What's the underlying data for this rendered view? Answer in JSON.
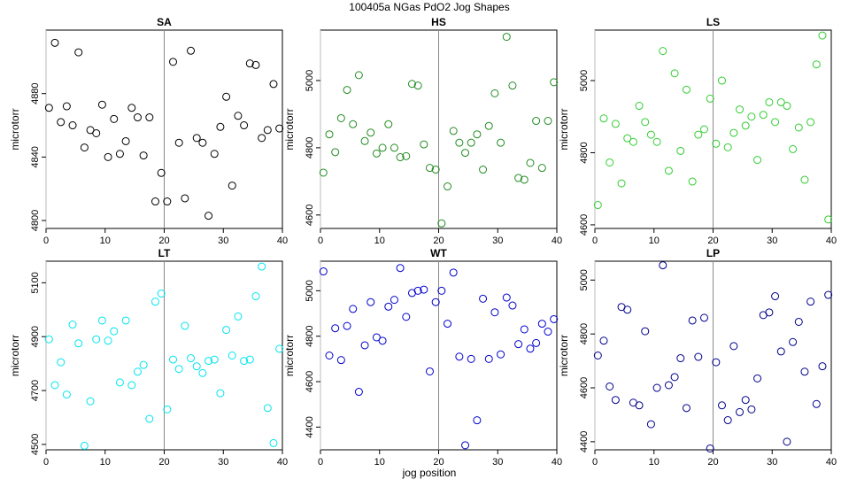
{
  "title": "100405a   NGas PdO2 Jog Shapes",
  "xlabel": "jog position",
  "chart_data": [
    {
      "type": "scatter",
      "title": "SA",
      "ylabel": "microtorr",
      "color": "#000000",
      "xlim": [
        0,
        40
      ],
      "ylim": [
        4795,
        4920
      ],
      "xticks": [
        0,
        10,
        20,
        30,
        40
      ],
      "yticks": [
        4800,
        4840,
        4880
      ],
      "vline": 20,
      "x": [
        0.5,
        1.5,
        2.5,
        3.5,
        4.5,
        5.5,
        6.5,
        7.5,
        8.5,
        9.5,
        10.5,
        11.5,
        12.5,
        13.5,
        14.5,
        15.5,
        16.5,
        17.5,
        18.5,
        19.5,
        20.5,
        21.5,
        22.5,
        23.5,
        24.5,
        25.5,
        26.5,
        27.5,
        28.5,
        29.5,
        30.5,
        31.5,
        32.5,
        33.5,
        34.5,
        35.5,
        36.5,
        37.5,
        38.5,
        39.5
      ],
      "y": [
        4871,
        4912,
        4862,
        4872,
        4860,
        4906,
        4846,
        4857,
        4855,
        4873,
        4840,
        4864,
        4842,
        4850,
        4871,
        4865,
        4841,
        4865,
        4812,
        4830,
        4812,
        4900,
        4849,
        4814,
        4907,
        4852,
        4849,
        4803,
        4842,
        4859,
        4878,
        4822,
        4866,
        4860,
        4899,
        4898,
        4852,
        4857,
        4886,
        4858
      ]
    },
    {
      "type": "scatter",
      "title": "HS",
      "ylabel": "microtorr",
      "color": "#228b22",
      "xlim": [
        0,
        40
      ],
      "ylim": [
        4560,
        5150
      ],
      "xticks": [
        0,
        10,
        20,
        30,
        40
      ],
      "yticks": [
        4600,
        4800,
        5000
      ],
      "vline": 20,
      "x": [
        0.5,
        1.5,
        2.5,
        3.5,
        4.5,
        5.5,
        6.5,
        7.5,
        8.5,
        9.5,
        10.5,
        11.5,
        12.5,
        13.5,
        14.5,
        15.5,
        16.5,
        17.5,
        18.5,
        19.5,
        20.5,
        21.5,
        22.5,
        23.5,
        24.5,
        25.5,
        26.5,
        27.5,
        28.5,
        29.5,
        30.5,
        31.5,
        32.5,
        33.5,
        34.5,
        35.5,
        36.5,
        37.5,
        38.5,
        39.5
      ],
      "y": [
        4726,
        4840,
        4787,
        4888,
        4972,
        4870,
        5016,
        4820,
        4845,
        4783,
        4800,
        4870,
        4800,
        4772,
        4775,
        4990,
        4985,
        4810,
        4740,
        4735,
        4575,
        4685,
        4850,
        4815,
        4785,
        4815,
        4840,
        4735,
        4865,
        4962,
        4815,
        5130,
        4985,
        4710,
        4705,
        4755,
        4880,
        4740,
        4880,
        4995
      ]
    },
    {
      "type": "scatter",
      "title": "LS",
      "ylabel": "microtorr",
      "color": "#32cd32",
      "xlim": [
        0,
        40
      ],
      "ylim": [
        4590,
        5140
      ],
      "xticks": [
        0,
        10,
        20,
        30,
        40
      ],
      "yticks": [
        4600,
        4800,
        5000
      ],
      "vline": 20,
      "x": [
        0.5,
        1.5,
        2.5,
        3.5,
        4.5,
        5.5,
        6.5,
        7.5,
        8.5,
        9.5,
        10.5,
        11.5,
        12.5,
        13.5,
        14.5,
        15.5,
        16.5,
        17.5,
        18.5,
        19.5,
        20.5,
        21.5,
        22.5,
        23.5,
        24.5,
        25.5,
        26.5,
        27.5,
        28.5,
        29.5,
        30.5,
        31.5,
        32.5,
        33.5,
        34.5,
        35.5,
        36.5,
        37.5,
        38.5,
        39.5
      ],
      "y": [
        4655,
        4895,
        4773,
        4880,
        4715,
        4840,
        4830,
        4930,
        4885,
        4850,
        4830,
        5082,
        4750,
        5020,
        4805,
        4975,
        4720,
        4850,
        4865,
        4950,
        4825,
        5000,
        4815,
        4855,
        4920,
        4875,
        4900,
        4780,
        4905,
        4940,
        4885,
        4940,
        4930,
        4810,
        4870,
        4725,
        4885,
        5045,
        5125,
        4615
      ]
    },
    {
      "type": "scatter",
      "title": "LT",
      "ylabel": "microtorr",
      "color": "#00e5ee",
      "xlim": [
        0,
        40
      ],
      "ylim": [
        4480,
        5180
      ],
      "xticks": [
        0,
        10,
        20,
        30,
        40
      ],
      "yticks": [
        4500,
        4700,
        4900,
        5100
      ],
      "vline": 20,
      "x": [
        0.5,
        1.5,
        2.5,
        3.5,
        4.5,
        5.5,
        6.5,
        7.5,
        8.5,
        9.5,
        10.5,
        11.5,
        12.5,
        13.5,
        14.5,
        15.5,
        16.5,
        17.5,
        18.5,
        19.5,
        20.5,
        21.5,
        22.5,
        23.5,
        24.5,
        25.5,
        26.5,
        27.5,
        28.5,
        29.5,
        30.5,
        31.5,
        32.5,
        33.5,
        34.5,
        35.5,
        36.5,
        37.5,
        38.5,
        39.5
      ],
      "y": [
        4890,
        4720,
        4805,
        4685,
        4945,
        4875,
        4495,
        4660,
        4890,
        4960,
        4885,
        4920,
        4730,
        4960,
        4720,
        4770,
        4795,
        4595,
        5030,
        5060,
        4630,
        4815,
        4780,
        4940,
        4820,
        4790,
        4765,
        4810,
        4815,
        4690,
        4925,
        4830,
        4975,
        4810,
        4815,
        5050,
        5160,
        4635,
        4505,
        4855
      ]
    },
    {
      "type": "scatter",
      "title": "WT",
      "ylabel": "microtorr",
      "color": "#0000cd",
      "xlim": [
        0,
        40
      ],
      "ylim": [
        4300,
        5130
      ],
      "xticks": [
        0,
        10,
        20,
        30,
        40
      ],
      "yticks": [
        4400,
        4600,
        4800,
        5000
      ],
      "vline": 20,
      "x": [
        0.5,
        1.5,
        2.5,
        3.5,
        4.5,
        5.5,
        6.5,
        7.5,
        8.5,
        9.5,
        10.5,
        11.5,
        12.5,
        13.5,
        14.5,
        15.5,
        16.5,
        17.5,
        18.5,
        19.5,
        20.5,
        21.5,
        22.5,
        23.5,
        24.5,
        25.5,
        26.5,
        27.5,
        28.5,
        29.5,
        30.5,
        31.5,
        32.5,
        33.5,
        34.5,
        35.5,
        36.5,
        37.5,
        38.5,
        39.5
      ],
      "y": [
        5085,
        4715,
        4835,
        4695,
        4845,
        4920,
        4555,
        4760,
        4950,
        4795,
        4780,
        4930,
        4960,
        5100,
        4885,
        4990,
        5000,
        5005,
        4645,
        4950,
        5000,
        4855,
        5080,
        4710,
        4320,
        4700,
        4430,
        4965,
        4700,
        4905,
        4720,
        4970,
        4935,
        4765,
        4830,
        4745,
        4770,
        4855,
        4820,
        4875
      ]
    },
    {
      "type": "scatter",
      "title": "LP",
      "ylabel": "microtorr",
      "color": "#00008b",
      "xlim": [
        0,
        40
      ],
      "ylim": [
        4370,
        5070
      ],
      "xticks": [
        0,
        10,
        20,
        30,
        40
      ],
      "yticks": [
        4400,
        4600,
        4800,
        5000
      ],
      "vline": 20,
      "x": [
        0.5,
        1.5,
        2.5,
        3.5,
        4.5,
        5.5,
        6.5,
        7.5,
        8.5,
        9.5,
        10.5,
        11.5,
        12.5,
        13.5,
        14.5,
        15.5,
        16.5,
        17.5,
        18.5,
        19.5,
        20.5,
        21.5,
        22.5,
        23.5,
        24.5,
        25.5,
        26.5,
        27.5,
        28.5,
        29.5,
        30.5,
        31.5,
        32.5,
        33.5,
        34.5,
        35.5,
        36.5,
        37.5,
        38.5,
        39.5
      ],
      "y": [
        4720,
        4775,
        4605,
        4555,
        4900,
        4890,
        4545,
        4535,
        4810,
        4465,
        4600,
        5055,
        4610,
        4640,
        4710,
        4525,
        4850,
        4715,
        4860,
        4375,
        4695,
        4535,
        4480,
        4755,
        4510,
        4555,
        4520,
        4635,
        4870,
        4880,
        4940,
        4735,
        4400,
        4770,
        4845,
        4660,
        4920,
        4540,
        4680,
        4945
      ]
    }
  ]
}
